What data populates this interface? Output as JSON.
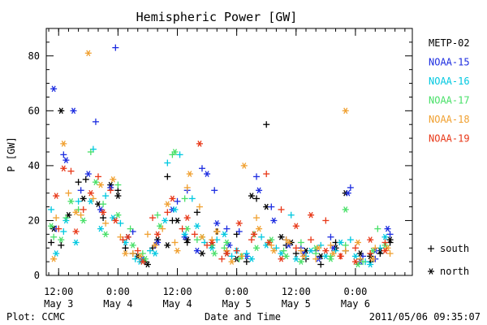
{
  "chart_data": {
    "type": "scatter",
    "title": "Hemispheric Power [GW]",
    "ylabel": "P [GW]",
    "xlabel": "Date and Time",
    "footer_left": "Plot: CCMC",
    "footer_right": "2011/05/06 09:35:07",
    "ylim": [
      0,
      90
    ],
    "yticks": [
      0,
      20,
      40,
      60,
      80
    ],
    "xlim_hours": [
      9.5,
      83.5
    ],
    "xticks": [
      {
        "hour": 12,
        "time": "12:00",
        "date": "May 3"
      },
      {
        "hour": 24,
        "time": "0:00",
        "date": "May 4"
      },
      {
        "hour": 36,
        "time": "12:00",
        "date": "May 4"
      },
      {
        "hour": 48,
        "time": "0:00",
        "date": "May 5"
      },
      {
        "hour": 60,
        "time": "12:00",
        "date": "May 5"
      },
      {
        "hour": 72,
        "time": "0:00",
        "date": "May 6"
      }
    ],
    "marker_key": [
      {
        "symbol": "+",
        "label": "south"
      },
      {
        "symbol": "*",
        "label": "north"
      }
    ],
    "series": [
      {
        "name": "METP-02",
        "color": "#000000",
        "south": [
          [
            10.5,
            12
          ],
          [
            12.5,
            11
          ],
          [
            16,
            34
          ],
          [
            17.5,
            35
          ],
          [
            21,
            21
          ],
          [
            24,
            31
          ],
          [
            25.5,
            10
          ],
          [
            27,
            8
          ],
          [
            29.5,
            5
          ],
          [
            31,
            10
          ],
          [
            34,
            36
          ],
          [
            35,
            20
          ],
          [
            38,
            12
          ],
          [
            40,
            23
          ],
          [
            44,
            16
          ],
          [
            46,
            9
          ],
          [
            48,
            15
          ],
          [
            50,
            5
          ],
          [
            52,
            28
          ],
          [
            54,
            55
          ],
          [
            58,
            11
          ],
          [
            60,
            8
          ],
          [
            62,
            6
          ],
          [
            65,
            4
          ],
          [
            68,
            12
          ],
          [
            70,
            9
          ],
          [
            73,
            6
          ],
          [
            75,
            5
          ],
          [
            77,
            8
          ],
          [
            79,
            12
          ]
        ],
        "north": [
          [
            11,
            17
          ],
          [
            12.5,
            60
          ],
          [
            14,
            22
          ],
          [
            17,
            28
          ],
          [
            20,
            26
          ],
          [
            22.5,
            33
          ],
          [
            24,
            29
          ],
          [
            26,
            14
          ],
          [
            28,
            7
          ],
          [
            30,
            4
          ],
          [
            32,
            13
          ],
          [
            34,
            11
          ],
          [
            36,
            20
          ],
          [
            38,
            13
          ],
          [
            41,
            8
          ],
          [
            43,
            11
          ],
          [
            46,
            8
          ],
          [
            48,
            6
          ],
          [
            51,
            29
          ],
          [
            54,
            25
          ],
          [
            57,
            14
          ],
          [
            59,
            12
          ],
          [
            62,
            9
          ],
          [
            65,
            7
          ],
          [
            68,
            10
          ],
          [
            70,
            30
          ],
          [
            73,
            8
          ],
          [
            75,
            7
          ],
          [
            77,
            9
          ],
          [
            79,
            13
          ]
        ]
      },
      {
        "name": "NOAA-15",
        "color": "#1c2ce0",
        "south": [
          [
            11.5,
            17
          ],
          [
            13,
            44
          ],
          [
            16.5,
            31
          ],
          [
            19.5,
            56
          ],
          [
            23.5,
            83
          ],
          [
            27,
            16
          ],
          [
            31.5,
            11
          ],
          [
            36,
            27
          ],
          [
            38,
            31
          ],
          [
            41,
            39
          ],
          [
            43.5,
            31
          ],
          [
            46,
            17
          ],
          [
            48.5,
            16
          ],
          [
            52,
            36
          ],
          [
            55,
            25
          ],
          [
            58,
            13
          ],
          [
            61,
            10
          ],
          [
            64,
            9
          ],
          [
            67,
            14
          ],
          [
            71,
            32
          ],
          [
            73.5,
            7
          ],
          [
            76,
            6
          ],
          [
            79,
            15
          ]
        ],
        "north": [
          [
            11,
            68
          ],
          [
            13.5,
            42
          ],
          [
            15,
            60
          ],
          [
            18,
            37
          ],
          [
            20.5,
            24
          ],
          [
            22.5,
            32
          ],
          [
            26,
            14
          ],
          [
            29,
            6
          ],
          [
            32,
            12
          ],
          [
            35,
            24
          ],
          [
            37.5,
            14
          ],
          [
            40,
            9
          ],
          [
            42,
            37
          ],
          [
            44,
            19
          ],
          [
            46.5,
            11
          ],
          [
            50,
            7
          ],
          [
            52.5,
            31
          ],
          [
            55.5,
            20
          ],
          [
            58.5,
            11
          ],
          [
            61.5,
            8
          ],
          [
            64.5,
            6
          ],
          [
            67.5,
            10
          ],
          [
            70.5,
            30
          ],
          [
            73,
            5
          ],
          [
            76,
            9
          ],
          [
            78.5,
            17
          ]
        ]
      },
      {
        "name": "NOAA-16",
        "color": "#00c8e0",
        "south": [
          [
            10.5,
            24
          ],
          [
            13,
            16
          ],
          [
            16,
            27
          ],
          [
            19,
            46
          ],
          [
            21.5,
            29
          ],
          [
            24.5,
            19
          ],
          [
            27.5,
            6
          ],
          [
            30.5,
            9
          ],
          [
            34,
            41
          ],
          [
            36.5,
            44
          ],
          [
            39,
            28
          ],
          [
            41.5,
            12
          ],
          [
            44,
            13
          ],
          [
            47,
            7
          ],
          [
            50,
            8
          ],
          [
            53,
            14
          ],
          [
            56,
            10
          ],
          [
            59,
            22
          ],
          [
            62,
            7
          ],
          [
            65,
            11
          ],
          [
            68,
            9
          ],
          [
            71,
            13
          ],
          [
            74,
            5
          ],
          [
            77,
            10
          ]
        ],
        "north": [
          [
            11.5,
            8
          ],
          [
            13.5,
            20
          ],
          [
            15.5,
            12
          ],
          [
            18.5,
            27
          ],
          [
            20.5,
            17
          ],
          [
            23,
            21
          ],
          [
            25.5,
            12
          ],
          [
            28.5,
            5
          ],
          [
            31.5,
            8
          ],
          [
            33.5,
            20
          ],
          [
            35.5,
            24
          ],
          [
            37.5,
            15
          ],
          [
            40,
            18
          ],
          [
            43,
            10
          ],
          [
            45.5,
            15
          ],
          [
            48,
            9
          ],
          [
            51,
            6
          ],
          [
            54,
            11
          ],
          [
            57,
            8
          ],
          [
            60,
            6
          ],
          [
            63,
            9
          ],
          [
            66,
            7
          ],
          [
            69,
            12
          ],
          [
            72,
            7
          ],
          [
            75,
            4
          ],
          [
            78,
            14
          ]
        ]
      },
      {
        "name": "NOAA-17",
        "color": "#48e068",
        "south": [
          [
            11,
            14
          ],
          [
            13.5,
            21
          ],
          [
            16,
            24
          ],
          [
            18.5,
            45
          ],
          [
            21,
            26
          ],
          [
            24,
            33
          ],
          [
            26.5,
            17
          ],
          [
            29,
            8
          ],
          [
            32,
            22
          ],
          [
            35,
            44
          ],
          [
            37.5,
            28
          ],
          [
            40,
            13
          ],
          [
            43,
            11
          ],
          [
            45.5,
            10
          ],
          [
            48.5,
            6
          ],
          [
            51.5,
            15
          ],
          [
            54.5,
            12
          ],
          [
            57.5,
            9
          ],
          [
            61,
            12
          ],
          [
            64,
            8
          ],
          [
            67,
            7
          ],
          [
            70,
            11
          ],
          [
            73.5,
            5
          ],
          [
            76.5,
            17
          ]
        ],
        "north": [
          [
            10.5,
            18
          ],
          [
            12.5,
            13
          ],
          [
            14.5,
            27
          ],
          [
            17,
            20
          ],
          [
            19.5,
            34
          ],
          [
            21.5,
            15
          ],
          [
            24,
            22
          ],
          [
            27,
            11
          ],
          [
            29.5,
            6
          ],
          [
            32.5,
            18
          ],
          [
            35.5,
            45
          ],
          [
            38,
            17
          ],
          [
            41,
            14
          ],
          [
            43.5,
            8
          ],
          [
            46,
            12
          ],
          [
            49,
            7
          ],
          [
            52,
            10
          ],
          [
            55,
            13
          ],
          [
            58,
            7
          ],
          [
            61,
            5
          ],
          [
            64,
            10
          ],
          [
            67,
            6
          ],
          [
            70,
            24
          ],
          [
            72.5,
            4
          ],
          [
            75.5,
            9
          ],
          [
            78,
            11
          ]
        ]
      },
      {
        "name": "NOAA-18",
        "color": "#f0a030",
        "south": [
          [
            11.5,
            21
          ],
          [
            14,
            30
          ],
          [
            16.5,
            22
          ],
          [
            19,
            28
          ],
          [
            21.5,
            19
          ],
          [
            24.5,
            14
          ],
          [
            27,
            8
          ],
          [
            30,
            15
          ],
          [
            33,
            17
          ],
          [
            35.5,
            12
          ],
          [
            38,
            32
          ],
          [
            40.5,
            25
          ],
          [
            43,
            13
          ],
          [
            46,
            9
          ],
          [
            49,
            7
          ],
          [
            52,
            21
          ],
          [
            55,
            11
          ],
          [
            58,
            13
          ],
          [
            61,
            9
          ],
          [
            64,
            6
          ],
          [
            67,
            11
          ],
          [
            70,
            9
          ],
          [
            73,
            6
          ],
          [
            76,
            10
          ],
          [
            79,
            8
          ]
        ],
        "north": [
          [
            11,
            6
          ],
          [
            13,
            48
          ],
          [
            15.5,
            23
          ],
          [
            18,
            81
          ],
          [
            20.5,
            33
          ],
          [
            23,
            35
          ],
          [
            25.5,
            8
          ],
          [
            28.5,
            7
          ],
          [
            31.5,
            11
          ],
          [
            34,
            26
          ],
          [
            36,
            9
          ],
          [
            38.5,
            37
          ],
          [
            41,
            14
          ],
          [
            44,
            16
          ],
          [
            47,
            5
          ],
          [
            49.5,
            40
          ],
          [
            52.5,
            17
          ],
          [
            55.5,
            9
          ],
          [
            58.5,
            12
          ],
          [
            61.5,
            7
          ],
          [
            64.5,
            10
          ],
          [
            67.5,
            8
          ],
          [
            70,
            60
          ],
          [
            72.5,
            12
          ],
          [
            75.5,
            6
          ],
          [
            78.5,
            10
          ]
        ]
      },
      {
        "name": "NOAA-19",
        "color": "#e83818",
        "south": [
          [
            12,
            17
          ],
          [
            14.5,
            38
          ],
          [
            17,
            24
          ],
          [
            20,
            36
          ],
          [
            22.5,
            31
          ],
          [
            25,
            13
          ],
          [
            28,
            9
          ],
          [
            31,
            21
          ],
          [
            34,
            23
          ],
          [
            37,
            17
          ],
          [
            39.5,
            15
          ],
          [
            42,
            11
          ],
          [
            45,
            6
          ],
          [
            48,
            9
          ],
          [
            51,
            13
          ],
          [
            54,
            37
          ],
          [
            57,
            24
          ],
          [
            60,
            10
          ],
          [
            63,
            13
          ],
          [
            66,
            20
          ],
          [
            69,
            7
          ],
          [
            72,
            10
          ],
          [
            75,
            8
          ],
          [
            78,
            12
          ]
        ],
        "north": [
          [
            11.5,
            29
          ],
          [
            13,
            39
          ],
          [
            15.5,
            16
          ],
          [
            18.5,
            30
          ],
          [
            21,
            23
          ],
          [
            23.5,
            20
          ],
          [
            26,
            14
          ],
          [
            29,
            5
          ],
          [
            32,
            15
          ],
          [
            35,
            28
          ],
          [
            38,
            21
          ],
          [
            40.5,
            48
          ],
          [
            43,
            12
          ],
          [
            46,
            8
          ],
          [
            48.5,
            19
          ],
          [
            51.5,
            15
          ],
          [
            54.5,
            12
          ],
          [
            57,
            6
          ],
          [
            60,
            18
          ],
          [
            63,
            22
          ],
          [
            66,
            9
          ],
          [
            69,
            7
          ],
          [
            72,
            5
          ],
          [
            75,
            13
          ],
          [
            78,
            9
          ]
        ]
      }
    ]
  }
}
